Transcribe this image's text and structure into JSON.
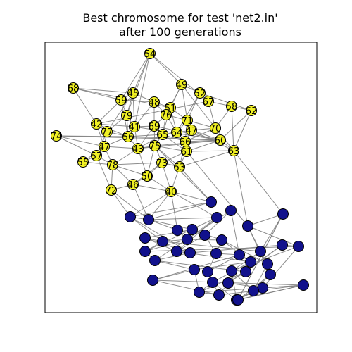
{
  "figure": {
    "title_line1": "Best chromosome for test 'net2.in'",
    "title_line2": "after 100 generations"
  },
  "colors": {
    "group_a": "#f0f024",
    "group_b": "#11118c",
    "edge": "#808080",
    "node_outline": "#000000"
  },
  "nodes": [
    {
      "id": "54",
      "label": "54",
      "group": "a"
    },
    {
      "id": "68",
      "label": "68",
      "group": "a"
    },
    {
      "id": "45",
      "label": "45",
      "group": "a"
    },
    {
      "id": "59",
      "label": "59",
      "group": "a"
    },
    {
      "id": "49",
      "label": "49",
      "group": "a"
    },
    {
      "id": "52",
      "label": "52",
      "group": "a"
    },
    {
      "id": "67",
      "label": "67",
      "group": "a"
    },
    {
      "id": "58",
      "label": "58",
      "group": "a"
    },
    {
      "id": "62",
      "label": "62",
      "group": "a"
    },
    {
      "id": "48",
      "label": "48",
      "group": "a"
    },
    {
      "id": "51",
      "label": "51",
      "group": "a"
    },
    {
      "id": "79",
      "label": "79",
      "group": "a"
    },
    {
      "id": "76",
      "label": "76",
      "group": "a"
    },
    {
      "id": "71",
      "label": "71",
      "group": "a"
    },
    {
      "id": "42",
      "label": "42",
      "group": "a"
    },
    {
      "id": "77",
      "label": "77",
      "group": "a"
    },
    {
      "id": "41",
      "label": "41",
      "group": "a"
    },
    {
      "id": "69",
      "label": "69",
      "group": "a"
    },
    {
      "id": "64",
      "label": "64",
      "group": "a"
    },
    {
      "id": "47b",
      "label": "47",
      "group": "a"
    },
    {
      "id": "70",
      "label": "70",
      "group": "a"
    },
    {
      "id": "74",
      "label": "74",
      "group": "a"
    },
    {
      "id": "56",
      "label": "56",
      "group": "a"
    },
    {
      "id": "65",
      "label": "65",
      "group": "a"
    },
    {
      "id": "66",
      "label": "66",
      "group": "a"
    },
    {
      "id": "60",
      "label": "60",
      "group": "a"
    },
    {
      "id": "47",
      "label": "47",
      "group": "a"
    },
    {
      "id": "43",
      "label": "43",
      "group": "a"
    },
    {
      "id": "75",
      "label": "75",
      "group": "a"
    },
    {
      "id": "61",
      "label": "61",
      "group": "a"
    },
    {
      "id": "63",
      "label": "63",
      "group": "a"
    },
    {
      "id": "50",
      "label": "50",
      "group": "a"
    },
    {
      "id": "57",
      "label": "57",
      "group": "a"
    },
    {
      "id": "55",
      "label": "55",
      "group": "a"
    },
    {
      "id": "78",
      "label": "78",
      "group": "a"
    },
    {
      "id": "73",
      "label": "73",
      "group": "a"
    },
    {
      "id": "53",
      "label": "53",
      "group": "a"
    },
    {
      "id": "46",
      "label": "46",
      "group": "a"
    },
    {
      "id": "72",
      "label": "72",
      "group": "a"
    },
    {
      "id": "40",
      "label": "40",
      "group": "a"
    },
    {
      "id": "b01",
      "label": "",
      "group": "b"
    },
    {
      "id": "b02",
      "label": "",
      "group": "b"
    },
    {
      "id": "b03",
      "label": "",
      "group": "b"
    },
    {
      "id": "b04",
      "label": "",
      "group": "b"
    },
    {
      "id": "b05",
      "label": "",
      "group": "b"
    },
    {
      "id": "b06",
      "label": "",
      "group": "b"
    },
    {
      "id": "b07",
      "label": "",
      "group": "b"
    },
    {
      "id": "b08",
      "label": "",
      "group": "b"
    },
    {
      "id": "b09",
      "label": "",
      "group": "b"
    },
    {
      "id": "b10",
      "label": "",
      "group": "b"
    },
    {
      "id": "b11",
      "label": "",
      "group": "b"
    },
    {
      "id": "b12",
      "label": "",
      "group": "b"
    },
    {
      "id": "b13",
      "label": "",
      "group": "b"
    },
    {
      "id": "b14",
      "label": "",
      "group": "b"
    },
    {
      "id": "b15",
      "label": "",
      "group": "b"
    },
    {
      "id": "b16",
      "label": "",
      "group": "b"
    },
    {
      "id": "b17",
      "label": "",
      "group": "b"
    },
    {
      "id": "b18",
      "label": "",
      "group": "b"
    },
    {
      "id": "b19",
      "label": "",
      "group": "b"
    },
    {
      "id": "b20",
      "label": "",
      "group": "b"
    },
    {
      "id": "b21",
      "label": "",
      "group": "b"
    },
    {
      "id": "b22",
      "label": "",
      "group": "b"
    },
    {
      "id": "b23",
      "label": "",
      "group": "b"
    },
    {
      "id": "b24",
      "label": "",
      "group": "b"
    },
    {
      "id": "b25",
      "label": "",
      "group": "b"
    },
    {
      "id": "b26",
      "label": "",
      "group": "b"
    },
    {
      "id": "b27",
      "label": "",
      "group": "b"
    },
    {
      "id": "b28",
      "label": "",
      "group": "b"
    },
    {
      "id": "b29",
      "label": "",
      "group": "b"
    },
    {
      "id": "b30",
      "label": "",
      "group": "b"
    },
    {
      "id": "b31",
      "label": "",
      "group": "b"
    },
    {
      "id": "b32",
      "label": "",
      "group": "b"
    },
    {
      "id": "b33",
      "label": "",
      "group": "b"
    },
    {
      "id": "b34",
      "label": "",
      "group": "b"
    },
    {
      "id": "b35",
      "label": "",
      "group": "b"
    },
    {
      "id": "b36",
      "label": "",
      "group": "b"
    },
    {
      "id": "b37",
      "label": "",
      "group": "b"
    },
    {
      "id": "b38",
      "label": "",
      "group": "b"
    },
    {
      "id": "b39",
      "label": "",
      "group": "b"
    },
    {
      "id": "b40",
      "label": "",
      "group": "b"
    }
  ],
  "edges": [
    [
      "54",
      "59"
    ],
    [
      "54",
      "49"
    ],
    [
      "54",
      "45"
    ],
    [
      "54",
      "79"
    ],
    [
      "54",
      "67"
    ],
    [
      "54",
      "41"
    ],
    [
      "68",
      "59"
    ],
    [
      "68",
      "45"
    ],
    [
      "68",
      "42"
    ],
    [
      "68",
      "51"
    ],
    [
      "45",
      "59"
    ],
    [
      "45",
      "48"
    ],
    [
      "45",
      "79"
    ],
    [
      "45",
      "41"
    ],
    [
      "45",
      "77"
    ],
    [
      "59",
      "79"
    ],
    [
      "59",
      "48"
    ],
    [
      "59",
      "42"
    ],
    [
      "59",
      "56"
    ],
    [
      "49",
      "52"
    ],
    [
      "49",
      "51"
    ],
    [
      "49",
      "76"
    ],
    [
      "49",
      "71"
    ],
    [
      "49",
      "70"
    ],
    [
      "52",
      "67"
    ],
    [
      "52",
      "71"
    ],
    [
      "52",
      "64"
    ],
    [
      "52",
      "62"
    ],
    [
      "67",
      "58"
    ],
    [
      "67",
      "70"
    ],
    [
      "67",
      "42"
    ],
    [
      "58",
      "62"
    ],
    [
      "58",
      "70"
    ],
    [
      "58",
      "63"
    ],
    [
      "62",
      "63"
    ],
    [
      "62",
      "60"
    ],
    [
      "48",
      "51"
    ],
    [
      "48",
      "69"
    ],
    [
      "48",
      "41"
    ],
    [
      "48",
      "76"
    ],
    [
      "51",
      "76"
    ],
    [
      "51",
      "71"
    ],
    [
      "51",
      "64"
    ],
    [
      "51",
      "65"
    ],
    [
      "79",
      "41"
    ],
    [
      "79",
      "56"
    ],
    [
      "79",
      "77"
    ],
    [
      "76",
      "71"
    ],
    [
      "76",
      "69"
    ],
    [
      "76",
      "65"
    ],
    [
      "76",
      "64"
    ],
    [
      "71",
      "64"
    ],
    [
      "71",
      "47b"
    ],
    [
      "71",
      "66"
    ],
    [
      "71",
      "70"
    ],
    [
      "42",
      "77"
    ],
    [
      "42",
      "47"
    ],
    [
      "42",
      "41"
    ],
    [
      "42",
      "56"
    ],
    [
      "77",
      "56"
    ],
    [
      "77",
      "47"
    ],
    [
      "77",
      "57"
    ],
    [
      "41",
      "69"
    ],
    [
      "41",
      "56"
    ],
    [
      "41",
      "60"
    ],
    [
      "41",
      "43"
    ],
    [
      "69",
      "65"
    ],
    [
      "69",
      "60"
    ],
    [
      "69",
      "75"
    ],
    [
      "69",
      "43"
    ],
    [
      "64",
      "47b"
    ],
    [
      "64",
      "66"
    ],
    [
      "64",
      "65"
    ],
    [
      "64",
      "61"
    ],
    [
      "47b",
      "70"
    ],
    [
      "47b",
      "66"
    ],
    [
      "47b",
      "60"
    ],
    [
      "47b",
      "63"
    ],
    [
      "70",
      "60"
    ],
    [
      "70",
      "63"
    ],
    [
      "70",
      "66"
    ],
    [
      "74",
      "56"
    ],
    [
      "74",
      "47"
    ],
    [
      "74",
      "60"
    ],
    [
      "74",
      "57"
    ],
    [
      "56",
      "60"
    ],
    [
      "56",
      "43"
    ],
    [
      "56",
      "47"
    ],
    [
      "56",
      "65"
    ],
    [
      "65",
      "66"
    ],
    [
      "65",
      "75"
    ],
    [
      "65",
      "61"
    ],
    [
      "65",
      "43"
    ],
    [
      "66",
      "61"
    ],
    [
      "66",
      "60"
    ],
    [
      "66",
      "53"
    ],
    [
      "60",
      "43"
    ],
    [
      "60",
      "75"
    ],
    [
      "60",
      "63"
    ],
    [
      "60",
      "61"
    ],
    [
      "47",
      "57"
    ],
    [
      "47",
      "55"
    ],
    [
      "47",
      "78"
    ],
    [
      "47",
      "43"
    ],
    [
      "43",
      "75"
    ],
    [
      "43",
      "78"
    ],
    [
      "43",
      "50"
    ],
    [
      "75",
      "61"
    ],
    [
      "75",
      "73"
    ],
    [
      "75",
      "50"
    ],
    [
      "75",
      "53"
    ],
    [
      "61",
      "53"
    ],
    [
      "61",
      "63"
    ],
    [
      "61",
      "73"
    ],
    [
      "63",
      "53"
    ],
    [
      "63",
      "b20"
    ],
    [
      "50",
      "73"
    ],
    [
      "50",
      "46"
    ],
    [
      "50",
      "40"
    ],
    [
      "50",
      "78"
    ],
    [
      "57",
      "55"
    ],
    [
      "57",
      "78"
    ],
    [
      "57",
      "72"
    ],
    [
      "55",
      "78"
    ],
    [
      "78",
      "46"
    ],
    [
      "78",
      "72"
    ],
    [
      "78",
      "73"
    ],
    [
      "73",
      "53"
    ],
    [
      "73",
      "40"
    ],
    [
      "73",
      "46"
    ],
    [
      "53",
      "40"
    ],
    [
      "53",
      "b01"
    ],
    [
      "46",
      "72"
    ],
    [
      "46",
      "40"
    ],
    [
      "46",
      "b03"
    ],
    [
      "72",
      "b03"
    ],
    [
      "72",
      "b02"
    ],
    [
      "40",
      "b01"
    ],
    [
      "40",
      "b03"
    ],
    [
      "40",
      "b04"
    ],
    [
      "40",
      "b02"
    ],
    [
      "40",
      "b12"
    ],
    [
      "75",
      "b01"
    ],
    [
      "61",
      "b20"
    ],
    [
      "63",
      "b18"
    ],
    [
      "b01",
      "b02"
    ],
    [
      "b01",
      "b03"
    ],
    [
      "b02",
      "b03"
    ],
    [
      "b02",
      "b09"
    ],
    [
      "b02",
      "b14"
    ],
    [
      "b03",
      "b04"
    ],
    [
      "b03",
      "b05"
    ],
    [
      "b03",
      "b12"
    ],
    [
      "b04",
      "b05"
    ],
    [
      "b04",
      "b06"
    ],
    [
      "b04",
      "b10"
    ],
    [
      "b05",
      "b06"
    ],
    [
      "b05",
      "b08"
    ],
    [
      "b05",
      "b11"
    ],
    [
      "b06",
      "b07"
    ],
    [
      "b06",
      "b13"
    ],
    [
      "b06",
      "b15"
    ],
    [
      "b07",
      "b17"
    ],
    [
      "b07",
      "b21"
    ],
    [
      "b08",
      "b09"
    ],
    [
      "b08",
      "b13"
    ],
    [
      "b08",
      "b14"
    ],
    [
      "b09",
      "b10"
    ],
    [
      "b09",
      "b16"
    ],
    [
      "b09",
      "b19"
    ],
    [
      "b10",
      "b11"
    ],
    [
      "b10",
      "b12"
    ],
    [
      "b10",
      "b16"
    ],
    [
      "b11",
      "b15"
    ],
    [
      "b11",
      "b22"
    ],
    [
      "b11",
      "b25"
    ],
    [
      "b12",
      "b13"
    ],
    [
      "b12",
      "b16"
    ],
    [
      "b13",
      "b14"
    ],
    [
      "b13",
      "b22"
    ],
    [
      "b14",
      "b17"
    ],
    [
      "b14",
      "b23"
    ],
    [
      "b15",
      "b21"
    ],
    [
      "b15",
      "b27"
    ],
    [
      "b16",
      "b17"
    ],
    [
      "b16",
      "b24"
    ],
    [
      "b17",
      "b26"
    ],
    [
      "b17",
      "b29"
    ],
    [
      "b18",
      "b19"
    ],
    [
      "b18",
      "b20"
    ],
    [
      "b18",
      "b40"
    ],
    [
      "b19",
      "b20"
    ],
    [
      "b19",
      "b25"
    ],
    [
      "b19",
      "b28"
    ],
    [
      "b20",
      "b24"
    ],
    [
      "b20",
      "b30"
    ],
    [
      "b21",
      "b22"
    ],
    [
      "b21",
      "b31"
    ],
    [
      "b22",
      "b26"
    ],
    [
      "b22",
      "b32"
    ],
    [
      "b23",
      "b24"
    ],
    [
      "b23",
      "b33"
    ],
    [
      "b24",
      "b34"
    ],
    [
      "b24",
      "b28"
    ],
    [
      "b25",
      "b30"
    ],
    [
      "b25",
      "b35"
    ],
    [
      "b26",
      "b31"
    ],
    [
      "b26",
      "b36"
    ],
    [
      "b27",
      "b32"
    ],
    [
      "b27",
      "b37"
    ],
    [
      "b28",
      "b35"
    ],
    [
      "b28",
      "b38"
    ],
    [
      "b29",
      "b33"
    ],
    [
      "b29",
      "b36"
    ],
    [
      "b30",
      "b35"
    ],
    [
      "b30",
      "b40"
    ],
    [
      "b31",
      "b37"
    ],
    [
      "b31",
      "b39"
    ],
    [
      "b32",
      "b36"
    ],
    [
      "b32",
      "b38"
    ],
    [
      "b33",
      "b37"
    ],
    [
      "b33",
      "b34"
    ],
    [
      "b34",
      "b38"
    ],
    [
      "b34",
      "b39"
    ],
    [
      "b35",
      "b38"
    ],
    [
      "b35",
      "b40"
    ],
    [
      "b36",
      "b37"
    ],
    [
      "b36",
      "b39"
    ],
    [
      "b37",
      "b39"
    ],
    [
      "b38",
      "b39"
    ],
    [
      "b38",
      "b40"
    ],
    [
      "b39",
      "b40"
    ],
    [
      "b40",
      "b18"
    ],
    [
      "b21",
      "b27"
    ],
    [
      "b23",
      "b29"
    ]
  ]
}
